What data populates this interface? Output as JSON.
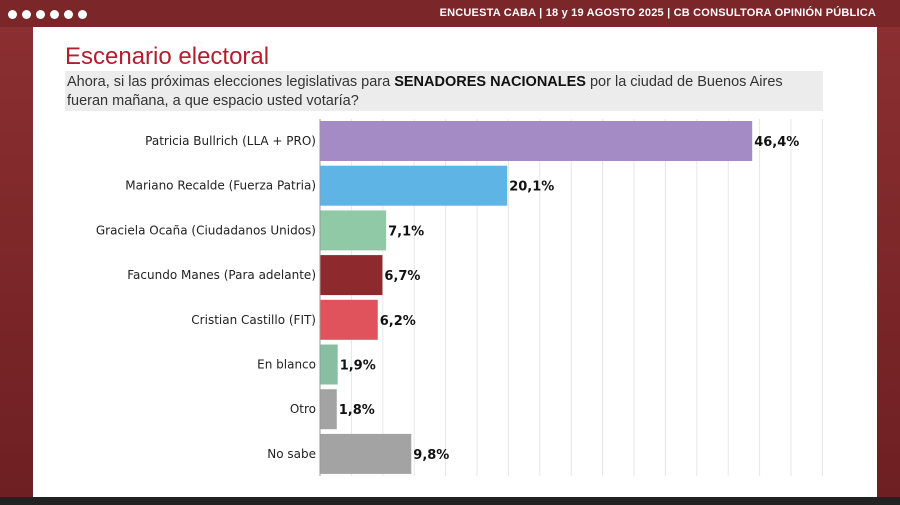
{
  "header": {
    "text": "ENCUESTA CABA  |  18 y 19 AGOSTO 2025 | CB CONSULTORA OPINIÓN PÚBLICA"
  },
  "title": "Escenario electoral",
  "question": {
    "before": "Ahora, si las próximas elecciones legislativas para ",
    "bold": "SENADORES NACIONALES",
    "after": " por la ciudad de Buenos Aires fueran mañana, a que espacio usted votaría?"
  },
  "chart_data": {
    "type": "bar",
    "orientation": "horizontal",
    "categories": [
      "Patricia Bullrich (LLA + PRO)",
      "Mariano Recalde (Fuerza Patria)",
      "Graciela Ocaña (Ciudadanos Unidos)",
      "Facundo Manes (Para adelante)",
      "Cristian Castillo (FIT)",
      "En blanco",
      "Otro",
      "No sabe"
    ],
    "values": [
      46.4,
      20.1,
      7.1,
      6.7,
      6.2,
      1.9,
      1.8,
      9.8
    ],
    "value_labels": [
      "46,4%",
      "20,1%",
      "7,1%",
      "6,7%",
      "6,2%",
      "1,9%",
      "1,8%",
      "9,8%"
    ],
    "colors": [
      "#a48bc6",
      "#5fb4e6",
      "#8fc9a6",
      "#8e2a2e",
      "#e0525c",
      "#88bfa2",
      "#a3a3a3",
      "#a3a3a3"
    ],
    "xlim": [
      0,
      54
    ],
    "grid": true
  }
}
